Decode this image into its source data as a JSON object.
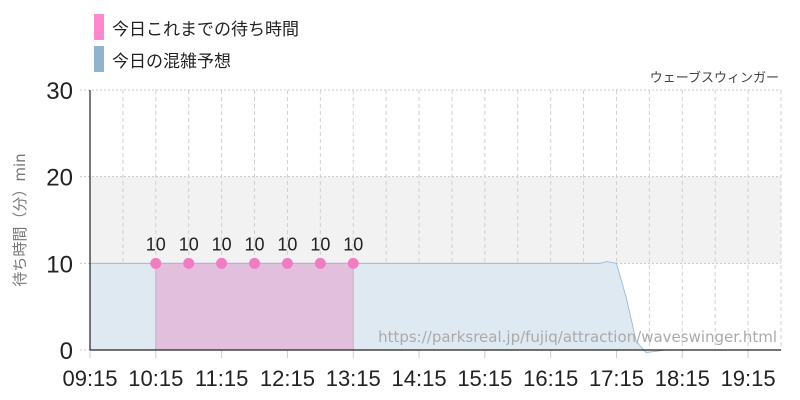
{
  "legend": [
    {
      "label": "今日これまでの待ち時間",
      "color": "#ff88cc"
    },
    {
      "label": "今日の混雑予想",
      "color": "#8fb3d1"
    }
  ],
  "chart_data": {
    "type": "area",
    "title": "ウェーブスウィンガー",
    "ylabel": "待ち時間（分）min",
    "xlabel": "",
    "watermark": "https://parksreal.jp/fujiq/attraction/waveswinger.html",
    "xlim": [
      "09:15",
      "19:45"
    ],
    "ylim": [
      0,
      30
    ],
    "yticks": [
      0,
      10,
      20,
      30
    ],
    "xticks": [
      "09:15",
      "10:15",
      "11:15",
      "12:15",
      "13:15",
      "14:15",
      "15:15",
      "16:15",
      "17:15",
      "18:15",
      "19:15"
    ],
    "grid": true,
    "highlight_band": [
      10,
      20
    ],
    "series": [
      {
        "name": "今日の混雑予想",
        "type": "area",
        "color": "#8fb3d1",
        "x": [
          "09:15",
          "17:00",
          "17:06",
          "17:15",
          "17:24",
          "17:33",
          "17:42",
          "18:00",
          "19:45"
        ],
        "y": [
          10,
          10,
          10.2,
          10,
          6,
          1,
          -0.3,
          0,
          0
        ]
      },
      {
        "name": "今日これまでの待ち時間",
        "type": "area",
        "color": "#ff88cc",
        "x": [
          "10:15",
          "10:45",
          "11:15",
          "11:45",
          "12:15",
          "12:45",
          "13:15"
        ],
        "y": [
          10,
          10,
          10,
          10,
          10,
          10,
          10
        ],
        "labels": [
          "10",
          "10",
          "10",
          "10",
          "10",
          "10",
          "10"
        ]
      }
    ]
  }
}
